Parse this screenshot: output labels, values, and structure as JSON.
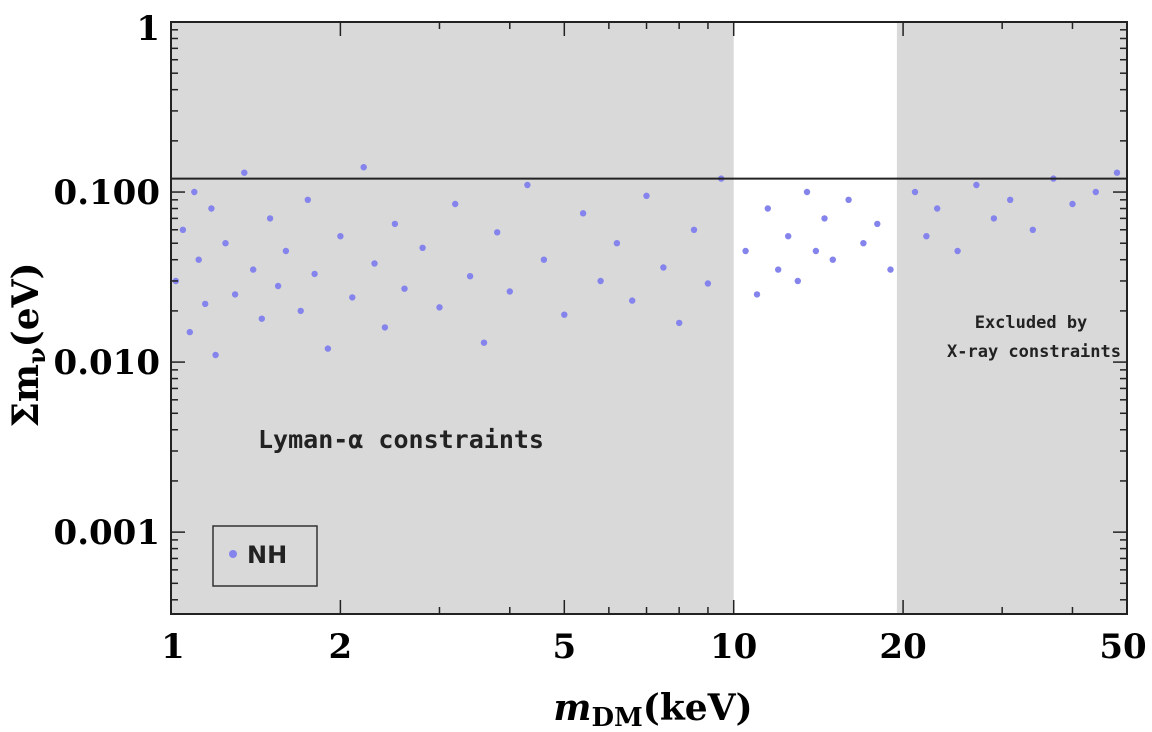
{
  "chart_data": {
    "type": "scatter",
    "title": "",
    "xlabel_italic": "m",
    "xlabel_sub": "DM",
    "xlabel_rest": "(keV)",
    "ylabel_main": "Σm",
    "ylabel_sub": "ν",
    "ylabel_rest": "(eV)",
    "x_scale": "log",
    "y_scale": "log",
    "xlim": [
      1,
      50
    ],
    "ylim": [
      0.00033,
      1
    ],
    "x_ticks": [
      {
        "value": 1,
        "label": "1"
      },
      {
        "value": 2,
        "label": "2"
      },
      {
        "value": 5,
        "label": "5"
      },
      {
        "value": 10,
        "label": "10"
      },
      {
        "value": 20,
        "label": "20"
      },
      {
        "value": 50,
        "label": "50"
      }
    ],
    "y_ticks": [
      {
        "value": 1,
        "label": "1"
      },
      {
        "value": 0.1,
        "label": "0.100"
      },
      {
        "value": 0.01,
        "label": "0.010"
      },
      {
        "value": 0.001,
        "label": "0.001"
      }
    ],
    "excluded_regions": [
      {
        "xmin": 1,
        "xmax": 10,
        "color": "#d9d9d9"
      },
      {
        "xmin": 19.5,
        "xmax": 50,
        "color": "#d9d9d9"
      }
    ],
    "reference_line_y": 0.12,
    "annotations": {
      "lyman": "Lyman-α constraints",
      "xray_line1": "Excluded by",
      "xray_line2": "X-ray constraints"
    },
    "series": [
      {
        "name": "NH",
        "color": "#8484ec",
        "points": [
          [
            1.02,
            0.03
          ],
          [
            1.05,
            0.06
          ],
          [
            1.08,
            0.015
          ],
          [
            1.1,
            0.1
          ],
          [
            1.12,
            0.04
          ],
          [
            1.15,
            0.022
          ],
          [
            1.18,
            0.08
          ],
          [
            1.2,
            0.011
          ],
          [
            1.25,
            0.05
          ],
          [
            1.3,
            0.025
          ],
          [
            1.35,
            0.13
          ],
          [
            1.4,
            0.035
          ],
          [
            1.45,
            0.018
          ],
          [
            1.5,
            0.07
          ],
          [
            1.55,
            0.028
          ],
          [
            1.6,
            0.045
          ],
          [
            1.7,
            0.02
          ],
          [
            1.75,
            0.09
          ],
          [
            1.8,
            0.033
          ],
          [
            1.9,
            0.012
          ],
          [
            2.0,
            0.055
          ],
          [
            2.1,
            0.024
          ],
          [
            2.2,
            0.14
          ],
          [
            2.3,
            0.038
          ],
          [
            2.4,
            0.016
          ],
          [
            2.5,
            0.065
          ],
          [
            2.6,
            0.027
          ],
          [
            2.8,
            0.047
          ],
          [
            3.0,
            0.021
          ],
          [
            3.2,
            0.085
          ],
          [
            3.4,
            0.032
          ],
          [
            3.6,
            0.013
          ],
          [
            3.8,
            0.058
          ],
          [
            4.0,
            0.026
          ],
          [
            4.3,
            0.11
          ],
          [
            4.6,
            0.04
          ],
          [
            5.0,
            0.019
          ],
          [
            5.4,
            0.075
          ],
          [
            5.8,
            0.03
          ],
          [
            6.2,
            0.05
          ],
          [
            6.6,
            0.023
          ],
          [
            7.0,
            0.095
          ],
          [
            7.5,
            0.036
          ],
          [
            8.0,
            0.017
          ],
          [
            8.5,
            0.06
          ],
          [
            9.0,
            0.029
          ],
          [
            9.5,
            0.12
          ],
          [
            10.5,
            0.045
          ],
          [
            11.0,
            0.025
          ],
          [
            11.5,
            0.08
          ],
          [
            12.0,
            0.035
          ],
          [
            12.5,
            0.055
          ],
          [
            13.0,
            0.03
          ],
          [
            13.5,
            0.1
          ],
          [
            14.0,
            0.045
          ],
          [
            14.5,
            0.07
          ],
          [
            15.0,
            0.04
          ],
          [
            16.0,
            0.09
          ],
          [
            17.0,
            0.05
          ],
          [
            18.0,
            0.065
          ],
          [
            19.0,
            0.035
          ],
          [
            21.0,
            0.1
          ],
          [
            22.0,
            0.055
          ],
          [
            23.0,
            0.08
          ],
          [
            25.0,
            0.045
          ],
          [
            27.0,
            0.11
          ],
          [
            29.0,
            0.07
          ],
          [
            31.0,
            0.09
          ],
          [
            34.0,
            0.06
          ],
          [
            37.0,
            0.12
          ],
          [
            40.0,
            0.085
          ],
          [
            44.0,
            0.1
          ],
          [
            48.0,
            0.13
          ]
        ]
      }
    ],
    "legend": {
      "placement": "bottom-left",
      "entries": [
        "NH"
      ]
    }
  }
}
